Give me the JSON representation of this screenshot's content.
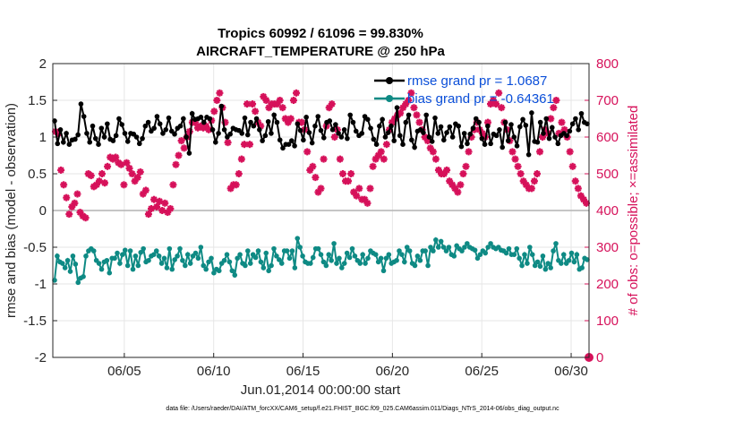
{
  "chart_data": {
    "type": "line",
    "title_line1": "Tropics 60992 / 61096 = 99.830%",
    "title_line2": "AIRCRAFT_TEMPERATURE @ 250 hPa",
    "xlabel": "Jun.01,2014 00:00:00 start",
    "ylabel_left": "rmse and bias (model - observation)",
    "ylabel_right": "# of obs: o=possible; ×=assimilated",
    "ylim_left": [
      -2,
      2
    ],
    "ylim_right": [
      0,
      800
    ],
    "yticks_left": [
      "2",
      "1.5",
      "1",
      "0.5",
      "0",
      "-0.5",
      "-1",
      "-1.5",
      "-2"
    ],
    "yticks_right": [
      "800",
      "700",
      "600",
      "500",
      "400",
      "300",
      "200",
      "100",
      "0"
    ],
    "xticks": [
      "06/05",
      "06/10",
      "06/15",
      "06/20",
      "06/25",
      "06/30"
    ],
    "xtick_days": [
      5,
      10,
      15,
      20,
      25,
      30
    ],
    "xlim_days": [
      1,
      31
    ],
    "grid": true,
    "legend_position": "top-right",
    "colors": {
      "rmse": "#000000",
      "bias": "#0e8a84",
      "obs": "#d6115a",
      "legend_text": "#0b4fd9",
      "zero": "#b3b3b3"
    },
    "series": [
      {
        "name": "rmse grand pr = 1.0687",
        "key": "rmse",
        "values": [
          1.22,
          0.91,
          1.1,
          0.93,
          1.05,
          0.9,
          0.96,
          0.97,
          1.03,
          1.45,
          1.28,
          1.05,
          0.93,
          1.15,
          0.98,
          0.9,
          1.12,
          1.0,
          1.18,
          0.97,
          0.95,
          1.02,
          1.25,
          1.17,
          1.05,
          0.94,
          1.05,
          1.04,
          1.0,
          0.91,
          0.98,
          1.15,
          1.2,
          1.08,
          1.12,
          1.28,
          1.18,
          1.05,
          1.1,
          1.26,
          1.08,
          1.04,
          1.12,
          1.15,
          1.25,
          1.0,
          0.78,
          1.32,
          1.24,
          1.25,
          1.27,
          1.2,
          1.27,
          1.25,
          1.1,
          0.93,
          1.05,
          1.42,
          1.1,
          1.0,
          1.04,
          1.12,
          1.1,
          1.09,
          1.05,
          1.26,
          1.03,
          1.2,
          1.15,
          1.25,
          1.1,
          0.95,
          1.02,
          1.21,
          1.05,
          1.3,
          1.2,
          0.96,
          0.85,
          0.9,
          0.9,
          0.95,
          0.88,
          1.18,
          1.09,
          0.96,
          1.27,
          1.06,
          0.92,
          1.15,
          1.28,
          1.09,
          0.99,
          1.2,
          1.22,
          1.1,
          1.17,
          1.05,
          1.0,
          1.1,
          0.98,
          1.3,
          1.2,
          1.08,
          1.02,
          1.05,
          1.28,
          1.24,
          1.12,
          0.97,
          0.9,
          1.15,
          1.24,
          1.0,
          1.06,
          1.15,
          0.95,
          1.4,
          1.02,
          0.9,
          1.2,
          1.3,
          0.96,
          0.86,
          1.08,
          1.1,
          1.06,
          1.3,
          1.0,
          0.94,
          1.26,
          1.05,
          1.14,
          0.96,
          1.06,
          1.14,
          1.0,
          1.18,
          1.15,
          0.87,
          1.05,
          0.91,
          1.04,
          1.12,
          1.25,
          1.2,
          0.98,
          0.9,
          1.15,
          0.91,
          1.04,
          1.02,
          1.1,
          0.86,
          1.2,
          0.95,
          1.17,
          1.0,
          0.88,
          1.14,
          1.24,
          1.16,
          0.76,
          1.33,
          0.94,
          0.93,
          1.2,
          1.05,
          1.25,
          0.98,
          1.13,
          1.0,
          0.91,
          1.02,
          1.05,
          1.02,
          1.08,
          1.18,
          1.25,
          1.1,
          1.32,
          1.2,
          1.18
        ]
      },
      {
        "name": "bias grand pr = -0.64361",
        "key": "bias",
        "values": [
          -0.95,
          -0.62,
          -0.7,
          -0.72,
          -0.78,
          -0.68,
          -0.83,
          -0.62,
          -0.73,
          -0.98,
          -0.92,
          -0.9,
          -0.62,
          -0.55,
          -0.52,
          -0.55,
          -0.68,
          -0.72,
          -0.8,
          -0.7,
          -0.68,
          -0.85,
          -0.65,
          -0.65,
          -0.58,
          -0.72,
          -0.6,
          -0.54,
          -0.75,
          -0.55,
          -0.8,
          -0.62,
          -0.75,
          -0.57,
          -0.52,
          -0.7,
          -0.68,
          -0.62,
          -0.6,
          -0.55,
          -0.62,
          -0.72,
          -0.65,
          -0.78,
          -0.52,
          -0.8,
          -0.67,
          -0.62,
          -0.52,
          -0.68,
          -0.75,
          -0.6,
          -0.72,
          -0.62,
          -0.58,
          -0.65,
          -0.5,
          -0.75,
          -0.8,
          -0.7,
          -0.65,
          -0.85,
          -0.8,
          -0.82,
          -0.72,
          -0.68,
          -0.6,
          -0.7,
          -0.82,
          -0.88,
          -0.65,
          -0.6,
          -0.72,
          -0.75,
          -0.55,
          -0.72,
          -0.6,
          -0.64,
          -0.55,
          -0.7,
          -0.78,
          -0.58,
          -0.82,
          -0.75,
          -0.52,
          -0.62,
          -0.67,
          -0.72,
          -0.55,
          -0.55,
          -0.65,
          -0.55,
          -0.78,
          -0.38,
          -0.5,
          -0.62,
          -0.7,
          -0.72,
          -0.72,
          -0.64,
          -0.52,
          -0.52,
          -0.6,
          -0.7,
          -0.75,
          -0.6,
          -0.68,
          -0.45,
          -0.72,
          -0.65,
          -0.78,
          -0.72,
          -0.58,
          -0.64,
          -0.52,
          -0.62,
          -0.68,
          -0.72,
          -0.6,
          -0.72,
          -0.65,
          -0.55,
          -0.58,
          -0.6,
          -0.7,
          -0.65,
          -0.82,
          -0.65,
          -0.6,
          -0.72,
          -0.7,
          -0.68,
          -0.55,
          -0.6,
          -0.7,
          -0.5,
          -0.55,
          -0.72,
          -0.75,
          -0.62,
          -0.68,
          -0.55,
          -0.55,
          -0.75,
          -0.5,
          -0.55,
          -0.4,
          -0.5,
          -0.42,
          -0.5,
          -0.55,
          -0.5,
          -0.6,
          -0.62,
          -0.48,
          -0.52,
          -0.55,
          -0.5,
          -0.45,
          -0.5,
          -0.52,
          -0.54,
          -0.65,
          -0.6,
          -0.55,
          -0.58,
          -0.5,
          -0.45,
          -0.5,
          -0.52,
          -0.5,
          -0.54,
          -0.55,
          -0.58,
          -0.52,
          -0.6,
          -0.6,
          -0.52,
          -0.65,
          -0.75,
          -0.6,
          -0.72,
          -0.5,
          -0.6,
          -0.75,
          -0.7,
          -0.76,
          -0.62,
          -0.8,
          -0.72,
          -0.78,
          -0.55,
          -0.45,
          -0.68,
          -0.72,
          -0.6,
          -0.72,
          -0.68,
          -0.58,
          -0.7,
          -0.6,
          -0.8,
          -0.78,
          -0.65,
          -0.67
        ]
      },
      {
        "name": "# of obs (possible / assimilated)",
        "key": "obs",
        "axis": "right",
        "values": [
          615,
          610,
          510,
          470,
          435,
          390,
          410,
          420,
          445,
          395,
          385,
          380,
          500,
          495,
          465,
          470,
          480,
          500,
          475,
          520,
          545,
          540,
          545,
          530,
          525,
          470,
          530,
          515,
          500,
          480,
          490,
          505,
          445,
          455,
          390,
          405,
          430,
          410,
          425,
          400,
          420,
          395,
          405,
          470,
          525,
          550,
          590,
          570,
          600,
          615,
          640,
          640,
          625,
          630,
          625,
          630,
          620,
          645,
          670,
          700,
          720,
          680,
          640,
          585,
          460,
          470,
          470,
          500,
          540,
          580,
          690,
          580,
          690,
          670,
          640,
          630,
          710,
          700,
          680,
          690,
          690,
          690,
          700,
          680,
          650,
          640,
          650,
          700,
          720,
          640,
          640,
          620,
          560,
          510,
          520,
          490,
          450,
          460,
          540,
          630,
          680,
          690,
          600,
          620,
          540,
          500,
          480,
          480,
          500,
          450,
          440,
          460,
          430,
          430,
          420,
          460,
          520,
          540,
          550,
          560,
          540,
          580,
          620,
          640,
          650,
          660,
          665,
          680,
          690,
          700,
          720,
          680,
          660,
          640,
          620,
          600,
          590,
          570,
          560,
          540,
          510,
          500,
          500,
          510,
          480,
          470,
          460,
          450,
          470,
          500,
          520,
          560,
          600,
          620,
          640,
          620,
          610,
          600,
          640,
          690,
          700,
          690,
          720,
          680,
          640,
          620,
          590,
          560,
          540,
          520,
          500,
          480,
          470,
          460,
          460,
          480,
          500,
          560,
          600,
          620,
          610,
          650,
          680,
          700,
          610,
          640,
          620,
          600,
          560,
          520,
          480,
          460,
          440,
          430,
          420
        ]
      }
    ],
    "obs_groups": {
      "possible_markers": "o",
      "assimilated_markers": "×"
    },
    "footer": "data file: /Users/raeder/DAI/ATM_forcXX/CAM6_setup/f.e21.FHIST_BGC.f09_025.CAM6assim.011/Diags_NTrS_2014-06/obs_diag_output.nc"
  }
}
